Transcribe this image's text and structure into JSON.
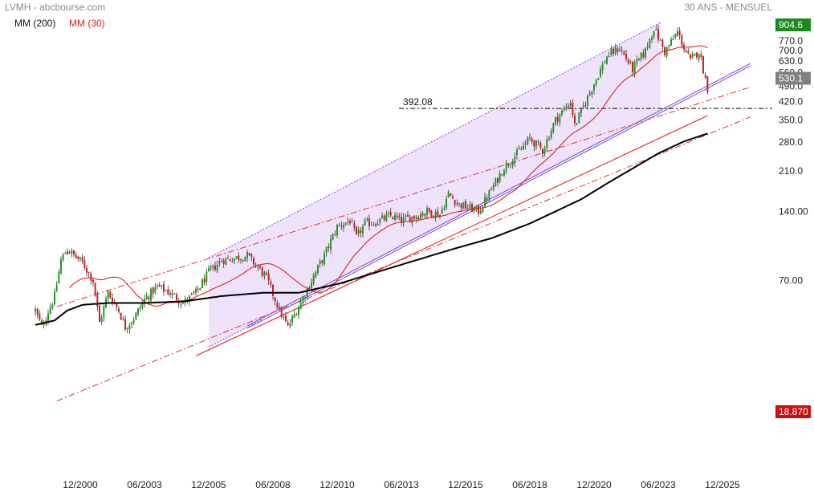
{
  "header": {
    "source": "LVMH - abcbourse.com",
    "period": "30 ANS - MENSUEL"
  },
  "legend": {
    "ma200": "MM (200)",
    "ma30": "MM (30)"
  },
  "colors": {
    "up": "#1a9e1a",
    "down": "#d41c1c",
    "ma200": "#000000",
    "ma30": "#e02020",
    "channel": "#7b42e0",
    "channel_fill": "#efe3fb",
    "support": "#e53030",
    "last_badge": "#808080",
    "high_badge": "#1b8a1b",
    "low_badge": "#c81010"
  },
  "chart_data": {
    "type": "candlestick",
    "scale": "log",
    "ylim": [
      18.87,
      904.6
    ],
    "yticks": [
      "904.6",
      "770.0",
      "700.0",
      "630.0",
      "560.0",
      "490.0",
      "420.0",
      "350.0",
      "280.0",
      "210.0",
      "140.00",
      "70.00",
      "18.870"
    ],
    "xticks": [
      "12/2000",
      "06/2003",
      "12/2005",
      "06/2008",
      "12/2010",
      "06/2013",
      "12/2015",
      "06/2018",
      "12/2020",
      "06/2023",
      "12/2025"
    ],
    "high_label": "904.6",
    "low_label": "18.870",
    "last_label": "530.1",
    "level_label": "392.08",
    "level_value": 392.08,
    "price_path": [
      [
        "1999-03",
        52
      ],
      [
        "1999-06",
        44
      ],
      [
        "1999-12",
        60
      ],
      [
        "2000-03",
        86
      ],
      [
        "2000-06",
        96
      ],
      [
        "2000-09",
        90
      ],
      [
        "2001-01",
        84
      ],
      [
        "2001-06",
        70
      ],
      [
        "2001-09",
        46
      ],
      [
        "2002-01",
        62
      ],
      [
        "2002-06",
        52
      ],
      [
        "2002-09",
        44
      ],
      [
        "2003-01",
        48
      ],
      [
        "2003-06",
        58
      ],
      [
        "2003-12",
        66
      ],
      [
        "2004-06",
        62
      ],
      [
        "2004-12",
        56
      ],
      [
        "2005-06",
        62
      ],
      [
        "2005-12",
        76
      ],
      [
        "2006-06",
        86
      ],
      [
        "2007-01",
        88
      ],
      [
        "2007-06",
        90
      ],
      [
        "2007-12",
        78
      ],
      [
        "2008-03",
        72
      ],
      [
        "2008-09",
        52
      ],
      [
        "2009-01",
        44
      ],
      [
        "2009-06",
        54
      ],
      [
        "2009-12",
        70
      ],
      [
        "2010-06",
        90
      ],
      [
        "2010-12",
        120
      ],
      [
        "2011-06",
        128
      ],
      [
        "2011-09",
        108
      ],
      [
        "2012-01",
        124
      ],
      [
        "2012-06",
        126
      ],
      [
        "2013-01",
        134
      ],
      [
        "2013-06",
        128
      ],
      [
        "2014-01",
        134
      ],
      [
        "2014-06",
        140
      ],
      [
        "2014-12",
        136
      ],
      [
        "2015-04",
        166
      ],
      [
        "2015-09",
        150
      ],
      [
        "2016-02",
        145
      ],
      [
        "2016-06",
        140
      ],
      [
        "2017-01",
        180
      ],
      [
        "2017-06",
        218
      ],
      [
        "2018-01",
        255
      ],
      [
        "2018-06",
        290
      ],
      [
        "2018-12",
        258
      ],
      [
        "2019-06",
        350
      ],
      [
        "2020-01",
        420
      ],
      [
        "2020-03",
        330
      ],
      [
        "2020-12",
        505
      ],
      [
        "2021-06",
        660
      ],
      [
        "2021-12",
        720
      ],
      [
        "2022-06",
        580
      ],
      [
        "2022-12",
        700
      ],
      [
        "2023-04",
        880
      ],
      [
        "2023-09",
        690
      ],
      [
        "2024-03",
        840
      ],
      [
        "2024-06",
        720
      ],
      [
        "2024-09",
        630
      ],
      [
        "2025-01",
        700
      ],
      [
        "2025-03",
        580
      ],
      [
        "2025-05",
        480
      ]
    ],
    "ma200_path": [
      [
        "1999-03",
        45
      ],
      [
        "1999-12",
        47
      ],
      [
        "2000-06",
        52
      ],
      [
        "2001-01",
        55
      ],
      [
        "2002-01",
        56
      ],
      [
        "2003-06",
        56
      ],
      [
        "2005-01",
        57
      ],
      [
        "2006-06",
        60
      ],
      [
        "2008-01",
        62
      ],
      [
        "2009-06",
        62
      ],
      [
        "2011-01",
        68
      ],
      [
        "2012-06",
        76
      ],
      [
        "2014-01",
        86
      ],
      [
        "2015-06",
        96
      ],
      [
        "2016-12",
        107
      ],
      [
        "2018-06",
        124
      ],
      [
        "2019-06",
        140
      ],
      [
        "2020-06",
        158
      ],
      [
        "2021-06",
        185
      ],
      [
        "2022-06",
        215
      ],
      [
        "2023-06",
        250
      ],
      [
        "2024-06",
        282
      ],
      [
        "2025-05",
        305
      ]
    ],
    "ma30_span": [
      "2000-06",
      "2025-05"
    ],
    "channel": {
      "start": "2005-12",
      "end": "2023-07",
      "lower": [
        36,
        380
      ],
      "upper": [
        88,
        925
      ],
      "extend_to": "2027-01"
    },
    "support_line": {
      "points": [
        [
          "2005-06",
          33
        ],
        [
          "2025-05",
          365
        ]
      ]
    },
    "outer_lines": [
      {
        "points": [
          [
            "2000-01",
            54
          ],
          [
            "2027-01",
            485
          ]
        ]
      },
      {
        "points": [
          [
            "2000-01",
            21
          ],
          [
            "2027-01",
            360
          ]
        ]
      }
    ]
  }
}
